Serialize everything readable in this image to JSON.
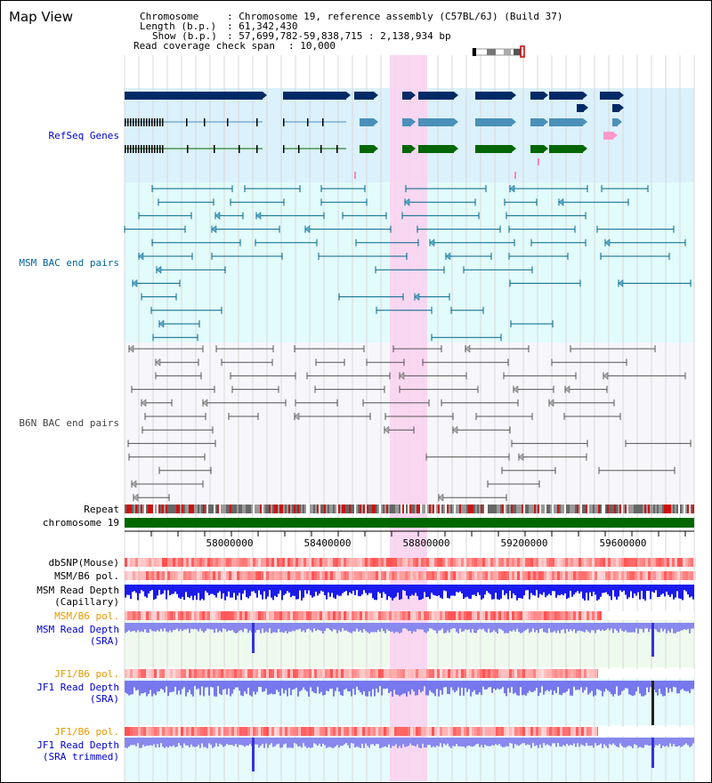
{
  "title": "Map View",
  "header": {
    "chromosome_label": "Chromosome",
    "chromosome_value": ": Chromosome 19, reference assembly (C57BL/6J) (Build 37)",
    "length_label": "Length (b.p.)",
    "length_value": ": 61,342,430",
    "show_label": "Show (b.p.)",
    "show_value": ": 57,699,782-59,838,715 : 2,138,934 bp",
    "coverage_label": "Read coverage check span",
    "coverage_value": ": 10,000"
  },
  "tracks": {
    "refseq": "RefSeq Genes",
    "msm_bac": "MSM BAC end pairs",
    "b6n_bac": "B6N BAC end pairs",
    "repeat": "Repeat",
    "chromosome": "chromosome 19",
    "dbsnp": "dbSNP(Mouse)",
    "msm_b6_pol": "MSM/B6 pol.",
    "msm_depth_cap_1": "MSM Read Depth",
    "msm_depth_cap_2": "(Capillary)",
    "msm_b6_pol_2": "MSM/B6 pol.",
    "msm_depth_sra_1": "MSM Read Depth",
    "msm_depth_sra_2": "(SRA)",
    "jf1_b6_pol": "JF1/B6 pol.",
    "jf1_depth_sra_1": "JF1 Read Depth",
    "jf1_depth_sra_2": "(SRA)",
    "jf1_b6_pol_2": "JF1/B6 pol.",
    "jf1_depth_trim_1": "JF1 Read Depth",
    "jf1_depth_trim_2": "(SRA trimmed)"
  },
  "axis": {
    "ticks": [
      "58000000",
      "58400000",
      "58800000",
      "59200000",
      "59600000"
    ]
  },
  "colors": {
    "refseq_label": "#0000cc",
    "msm_bac_label": "#006699",
    "b6n_label": "#444444",
    "pol_orange": "#e69900",
    "depth_blue": "#0000cc",
    "highlight": "#f9d3f0"
  }
}
